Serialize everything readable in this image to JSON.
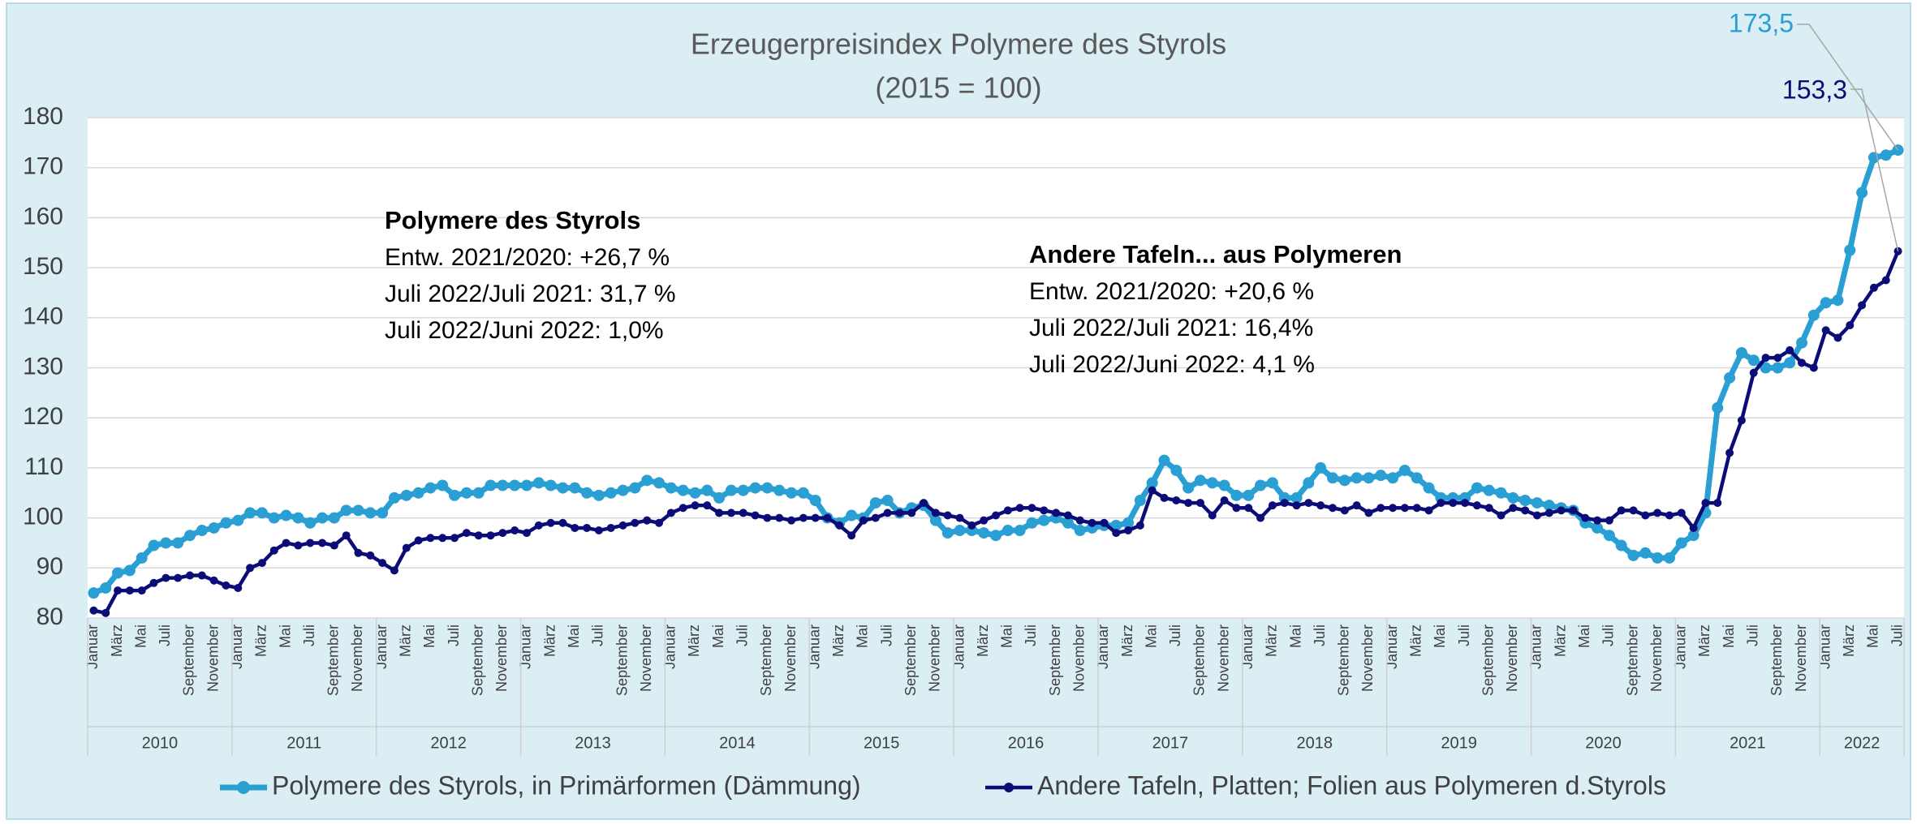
{
  "chart_data": {
    "type": "line",
    "title": "Erzeugerpreisindex  Polymere des Styrols",
    "subtitle": "(2015 = 100)",
    "categories": [
      "Januar",
      null,
      "März",
      null,
      "Mai",
      null,
      "Juli",
      null,
      "September",
      null,
      "November",
      null,
      "Januar",
      null,
      "März",
      null,
      "Mai",
      null,
      "Juli",
      null,
      "September",
      null,
      "November",
      null,
      "Januar",
      null,
      "März",
      null,
      "Mai",
      null,
      "Juli",
      null,
      "September",
      null,
      "November",
      null,
      "Januar",
      null,
      "März",
      null,
      "Mai",
      null,
      "Juli",
      null,
      "September",
      null,
      "November",
      null,
      "Januar",
      null,
      "März",
      null,
      "Mai",
      null,
      "Juli",
      null,
      "September",
      null,
      "November",
      null,
      "Januar",
      null,
      "März",
      null,
      "Mai",
      null,
      "Juli",
      null,
      "September",
      null,
      "November",
      null,
      "Januar",
      null,
      "März",
      null,
      "Mai",
      null,
      "Juli",
      null,
      "September",
      null,
      "November",
      null,
      "Januar",
      null,
      "März",
      null,
      "Mai",
      null,
      "Juli",
      null,
      "September",
      null,
      "November",
      null,
      "Januar",
      null,
      "März",
      null,
      "Mai",
      null,
      "Juli",
      null,
      "September",
      null,
      "November",
      null,
      "Januar",
      null,
      "März",
      null,
      "Mai",
      null,
      "Juli",
      null,
      "September",
      null,
      "November",
      null,
      "Januar",
      null,
      "März",
      null,
      "Mai",
      null,
      "Juli",
      null,
      "September",
      null,
      "November",
      null,
      "Januar",
      null,
      "März",
      null,
      "Mai",
      null,
      "Juli",
      null,
      "September",
      null,
      "November",
      null,
      "Januar",
      null,
      "März",
      null,
      "Mai",
      null,
      "Juli"
    ],
    "years": [
      "2010",
      "2011",
      "2012",
      "2013",
      "2014",
      "2015",
      "2016",
      "2017",
      "2018",
      "2019",
      "2020",
      "2021",
      "2022"
    ],
    "ylim": [
      80,
      180
    ],
    "yticks": [
      80,
      90,
      100,
      110,
      120,
      130,
      140,
      150,
      160,
      170,
      180
    ],
    "grid": true,
    "legend": "bottom",
    "series": [
      {
        "name": "Polymere des Styrols, in Primärformen (Dämmung)",
        "color": "#2a9fd4",
        "values": [
          85,
          86,
          89,
          89.5,
          92,
          94.5,
          95,
          95,
          96.5,
          97.5,
          98,
          99,
          99.5,
          101,
          101,
          100,
          100.5,
          100,
          99,
          100,
          100,
          101.5,
          101.5,
          101,
          101,
          104,
          104.5,
          105,
          106,
          106.5,
          104.5,
          105,
          105,
          106.5,
          106.5,
          106.5,
          106.5,
          107,
          106.5,
          106,
          106,
          105,
          104.5,
          105,
          105.5,
          106,
          107.5,
          107,
          106,
          105.5,
          105,
          105.5,
          104,
          105.5,
          105.5,
          106,
          106,
          105.5,
          105,
          105,
          103.5,
          100,
          99,
          100.5,
          100,
          103,
          103.5,
          101,
          102,
          102.5,
          99.5,
          97,
          97.5,
          97.5,
          97,
          96.5,
          97.5,
          97.5,
          99,
          99.5,
          100,
          99,
          97.5,
          98,
          98.5,
          98.5,
          99,
          103.5,
          107,
          111.5,
          109.5,
          106,
          107.5,
          107,
          106.5,
          104.5,
          104.5,
          106.5,
          107,
          104,
          104,
          107,
          110,
          108,
          107.5,
          108,
          108,
          108.5,
          108,
          109.5,
          108,
          106,
          104,
          104,
          104,
          106,
          105.5,
          105,
          104,
          103.5,
          103,
          102.5,
          102,
          101.5,
          99,
          98,
          96.5,
          94.5,
          92.5,
          93,
          92,
          92,
          95,
          96.5,
          101,
          122,
          128,
          133,
          131.5,
          130,
          130,
          131,
          135,
          140.5,
          143,
          143.5,
          153.5,
          165,
          172,
          172.5,
          173.5
        ],
        "value_labels": [
          null,
          null,
          null,
          null,
          null,
          null,
          null,
          null,
          null,
          null,
          null,
          null,
          null,
          null,
          null,
          null,
          null,
          null,
          null,
          null,
          null,
          null,
          null,
          null,
          null,
          null,
          null,
          null,
          null,
          null,
          null,
          null,
          null,
          null,
          null,
          null,
          null,
          null,
          null,
          null,
          null,
          null,
          null,
          null,
          null,
          null,
          null,
          null,
          null,
          null,
          null,
          null,
          null,
          null,
          null,
          null,
          null,
          null,
          null,
          null,
          null,
          null,
          null,
          null,
          null,
          null,
          null,
          null,
          null,
          null,
          null,
          null,
          null,
          null,
          null,
          null,
          null,
          null,
          null,
          null,
          null,
          null,
          null,
          null,
          null,
          null,
          null,
          null,
          null,
          null,
          null,
          null,
          null,
          null,
          null,
          null,
          null,
          null,
          null,
          null,
          null,
          null,
          null,
          null,
          null,
          null,
          null,
          null,
          null,
          null,
          null,
          null,
          null,
          null,
          null,
          null,
          null,
          null,
          null,
          null,
          null,
          null,
          null,
          null,
          null,
          null,
          null,
          null,
          null,
          null,
          null,
          null,
          null,
          null,
          null,
          null,
          null,
          null,
          null,
          null,
          null,
          null,
          null,
          null,
          null,
          null,
          null,
          null,
          null,
          null,
          "173,5"
        ]
      },
      {
        "name": "Andere Tafeln, Platten; Folien aus Polymeren d.Styrols",
        "color": "#0c0c78",
        "values": [
          81.5,
          81,
          85.5,
          85.5,
          85.5,
          87,
          88,
          88,
          88.5,
          88.5,
          87.5,
          86.5,
          86,
          90,
          91,
          93.5,
          95,
          94.5,
          95,
          95,
          94.5,
          96.5,
          93,
          92.5,
          91,
          89.5,
          94,
          95.5,
          96,
          96,
          96,
          97,
          96.5,
          96.5,
          97,
          97.5,
          97,
          98.5,
          99,
          99,
          98,
          98,
          97.5,
          98,
          98.5,
          99,
          99.5,
          99,
          101,
          102,
          102.5,
          102.5,
          101,
          101,
          101,
          100.5,
          100,
          100,
          99.5,
          100,
          100,
          100,
          98.5,
          96.5,
          99.5,
          100,
          101,
          101,
          101,
          103,
          101,
          100.5,
          100,
          98.5,
          99.5,
          100.5,
          101.5,
          102,
          102,
          101.5,
          101,
          100.5,
          99.5,
          99,
          99,
          97,
          97.5,
          98.5,
          105.5,
          104,
          103.5,
          103,
          103,
          100.5,
          103.5,
          102,
          102,
          100,
          102.5,
          103,
          102.5,
          103,
          102.5,
          102,
          101.5,
          102.5,
          101,
          102,
          102,
          102,
          102,
          101.5,
          103,
          103,
          103,
          102.5,
          102,
          100.5,
          102,
          101.5,
          100.5,
          101,
          101.5,
          101.5,
          100,
          99.5,
          99.5,
          101.5,
          101.5,
          100.5,
          101,
          100.5,
          101,
          98,
          103,
          103,
          113,
          119.5,
          129,
          132,
          132,
          133.5,
          131,
          130,
          137.5,
          136,
          138.5,
          142.5,
          146,
          147.5,
          153.3
        ],
        "value_labels": [
          null,
          null,
          null,
          null,
          null,
          null,
          null,
          null,
          null,
          null,
          null,
          null,
          null,
          null,
          null,
          null,
          null,
          null,
          null,
          null,
          null,
          null,
          null,
          null,
          null,
          null,
          null,
          null,
          null,
          null,
          null,
          null,
          null,
          null,
          null,
          null,
          null,
          null,
          null,
          null,
          null,
          null,
          null,
          null,
          null,
          null,
          null,
          null,
          null,
          null,
          null,
          null,
          null,
          null,
          null,
          null,
          null,
          null,
          null,
          null,
          null,
          null,
          null,
          null,
          null,
          null,
          null,
          null,
          null,
          null,
          null,
          null,
          null,
          null,
          null,
          null,
          null,
          null,
          null,
          null,
          null,
          null,
          null,
          null,
          null,
          null,
          null,
          null,
          null,
          null,
          null,
          null,
          null,
          null,
          null,
          null,
          null,
          null,
          null,
          null,
          null,
          null,
          null,
          null,
          null,
          null,
          null,
          null,
          null,
          null,
          null,
          null,
          null,
          null,
          null,
          null,
          null,
          null,
          null,
          null,
          null,
          null,
          null,
          null,
          null,
          null,
          null,
          null,
          null,
          null,
          null,
          null,
          null,
          null,
          null,
          null,
          null,
          null,
          null,
          null,
          null,
          null,
          null,
          null,
          null,
          null,
          null,
          null,
          null,
          null,
          "153,3"
        ]
      }
    ],
    "annotations": [
      {
        "title": "Polymere des Styrols",
        "lines": [
          "Entw. 2021/2020:  +26,7 %",
          "Juli 2022/Juli 2021: 31,7 %",
          "Juli 2022/Juni 2022:  1,0%"
        ]
      },
      {
        "title": "Andere Tafeln... aus Polymeren",
        "lines": [
          "Entw. 2021/2020:  +20,6 %",
          "Juli 2022/Juli 2021: 16,4%",
          "Juli 2022/Juni 2022: 4,1 %"
        ]
      }
    ]
  }
}
